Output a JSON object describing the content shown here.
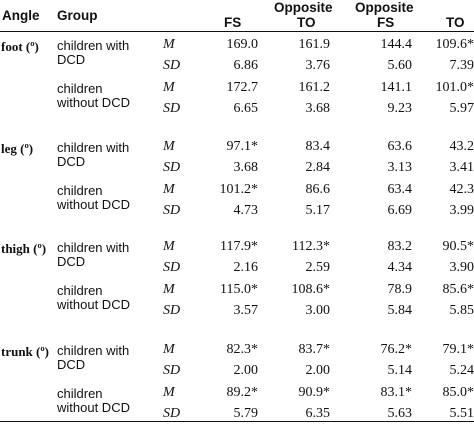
{
  "header": {
    "angle": "Angle",
    "group": "Group",
    "fs": "FS",
    "opp_to_top": "Opposite",
    "opp_to_bottom": "TO",
    "opp_fs_top": "Opposite",
    "opp_fs_bottom": "FS",
    "to": "TO"
  },
  "angles": [
    {
      "name": "foot (º)",
      "groups": [
        {
          "line1": "children with",
          "line2": "DCD",
          "rows": [
            {
              "stat": "M",
              "values": [
                "169.0",
                "161.9",
                "144.4",
                "109.6*"
              ]
            },
            {
              "stat": "SD",
              "values": [
                "6.86",
                "3.76",
                "5.60",
                "7.39"
              ]
            }
          ]
        },
        {
          "line1": "children",
          "line2": "without DCD",
          "rows": [
            {
              "stat": "M",
              "values": [
                "172.7",
                "161.2",
                "141.1",
                "101.0*"
              ]
            },
            {
              "stat": "SD",
              "values": [
                "6.65",
                "3.68",
                "9.23",
                "5.97"
              ]
            }
          ]
        }
      ]
    },
    {
      "name": "leg (º)",
      "groups": [
        {
          "line1": "children with",
          "line2": "DCD",
          "rows": [
            {
              "stat": "M",
              "values": [
                "97.1*",
                "83.4",
                "63.6",
                "43.2"
              ]
            },
            {
              "stat": "SD",
              "values": [
                "3.68",
                "2.84",
                "3.13",
                "3.41"
              ]
            }
          ]
        },
        {
          "line1": "children",
          "line2": "without DCD",
          "rows": [
            {
              "stat": "M",
              "values": [
                "101.2*",
                "86.6",
                "63.4",
                "42.3"
              ]
            },
            {
              "stat": "SD",
              "values": [
                "4.73",
                "5.17",
                "6.69",
                "3.99"
              ]
            }
          ]
        }
      ]
    },
    {
      "name": "thigh (º)",
      "groups": [
        {
          "line1": "children with",
          "line2": "DCD",
          "rows": [
            {
              "stat": "M",
              "values": [
                "117.9*",
                "112.3*",
                "83.2",
                "90.5*"
              ]
            },
            {
              "stat": "SD",
              "values": [
                "2.16",
                "2.59",
                "4.34",
                "3.90"
              ]
            }
          ]
        },
        {
          "line1": "children",
          "line2": "without DCD",
          "rows": [
            {
              "stat": "M",
              "values": [
                "115.0*",
                "108.6*",
                "78.9",
                "85.6*"
              ]
            },
            {
              "stat": "SD",
              "values": [
                "3.57",
                "3.00",
                "5.84",
                "5.85"
              ]
            }
          ]
        }
      ]
    },
    {
      "name": "trunk (º)",
      "groups": [
        {
          "line1": "children with",
          "line2": "DCD",
          "rows": [
            {
              "stat": "M",
              "values": [
                "82.3*",
                "83.7*",
                "76.2*",
                "79.1*"
              ]
            },
            {
              "stat": "SD",
              "values": [
                "2.00",
                "2.00",
                "5.14",
                "5.24"
              ]
            }
          ]
        },
        {
          "line1": "children",
          "line2": "without DCD",
          "rows": [
            {
              "stat": "M",
              "values": [
                "89.2*",
                "90.9*",
                "83.1*",
                "85.0*"
              ]
            },
            {
              "stat": "SD",
              "values": [
                "5.79",
                "6.35",
                "5.63",
                "5.51"
              ]
            }
          ]
        }
      ]
    }
  ]
}
